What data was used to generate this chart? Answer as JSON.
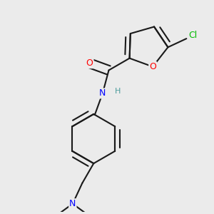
{
  "bg_color": "#ebebeb",
  "bond_color": "#1a1a1a",
  "bond_width": 1.5,
  "atom_colors": {
    "O": "#ff0000",
    "N": "#0000ff",
    "Cl": "#00bb00",
    "H": "#4a9a9a"
  },
  "font_size": 9,
  "font_size_H": 8,
  "font_size_Cl": 9
}
